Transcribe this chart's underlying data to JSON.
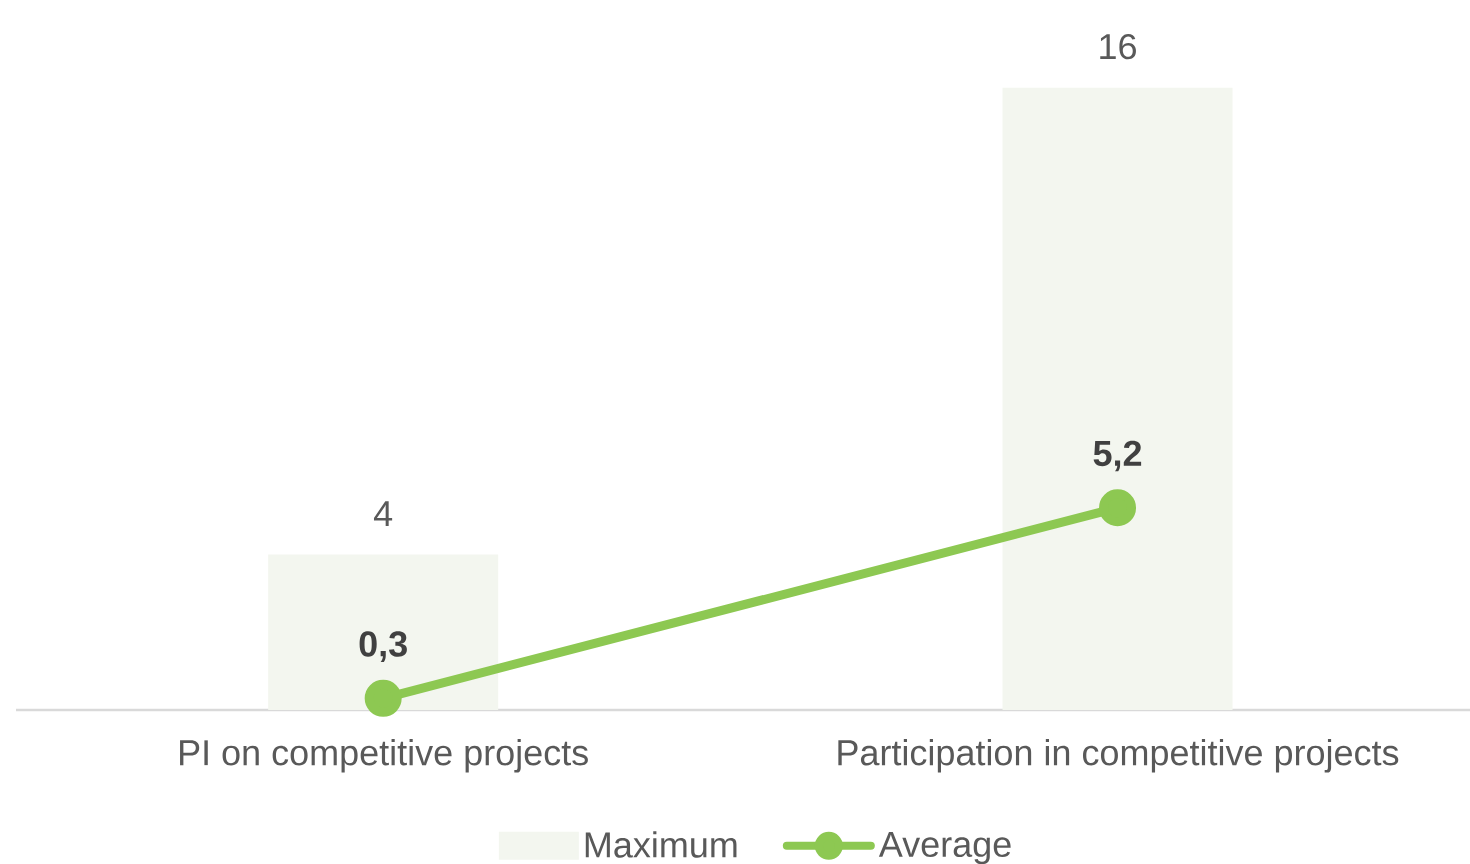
{
  "chart_data": {
    "type": "bar",
    "categories": [
      "PI on competitive projects",
      "Participation in competitive projects"
    ],
    "series": [
      {
        "name": "Maximum",
        "color": "#f3f6ef",
        "values": [
          4,
          16
        ],
        "value_labels": [
          "4",
          "16"
        ]
      },
      {
        "name": "Average",
        "type": "line",
        "color": "#8dc852",
        "values": [
          0.3,
          5.2
        ],
        "value_labels": [
          "0,3",
          "5,2"
        ],
        "marker": "circle",
        "line_style": "solid"
      }
    ],
    "tick_labels": "x",
    "legend": "bottom"
  }
}
